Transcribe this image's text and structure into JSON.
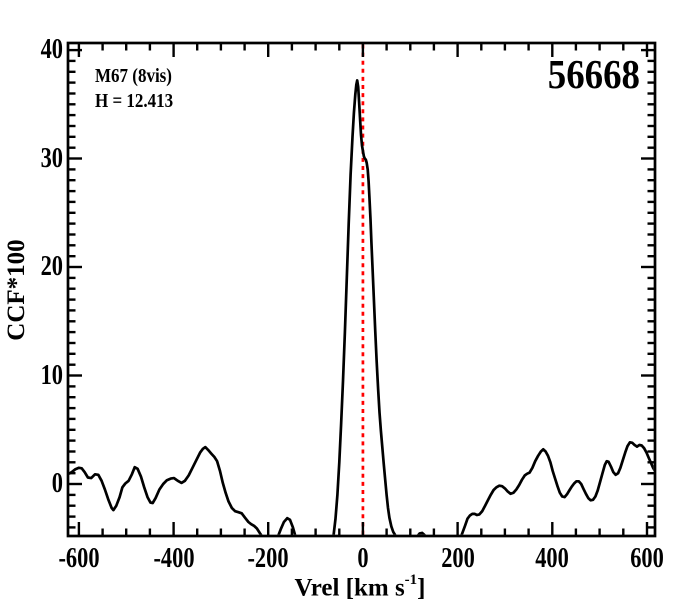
{
  "figure": {
    "cluster_label": "M67 (8vis)",
    "h_mag_label": "H = 12.413",
    "star_id": "56668"
  },
  "colors": {
    "background": "#ffffff",
    "axis": "#000000",
    "curve": "#000000",
    "reference_line": "#ff0000"
  },
  "chart_data": {
    "type": "line",
    "title": "",
    "xlabel_prefix": "Vrel [km s",
    "xlabel_sup": "-1",
    "xlabel_suffix": "]",
    "ylabel": "CCF*100",
    "xlim": [
      -623,
      617
    ],
    "ylim": [
      -4.79,
      40.65
    ],
    "xticks_major": [
      -600,
      -400,
      -200,
      0,
      200,
      400,
      600
    ],
    "xtick_labels": [
      "-600",
      "-400",
      "-200",
      "0",
      "200",
      "400",
      "600"
    ],
    "xtick_minor_step": 50,
    "yticks_major": [
      0,
      10,
      20,
      30,
      40
    ],
    "ytick_labels": [
      "0",
      "10",
      "20",
      "30",
      "40"
    ],
    "ytick_minor_step": 1,
    "grid": false,
    "tick_direction": "in",
    "reference_line": {
      "x": 0,
      "color": "#ff0000",
      "style": "dotted"
    },
    "series": [
      {
        "name": "ccf",
        "color": "#000000",
        "points": [
          [
            -623,
            0.9
          ],
          [
            -615,
            1.1
          ],
          [
            -608,
            1.35
          ],
          [
            -600,
            1.5
          ],
          [
            -594,
            1.45
          ],
          [
            -588,
            1.1
          ],
          [
            -581,
            0.6
          ],
          [
            -574,
            0.55
          ],
          [
            -566,
            0.9
          ],
          [
            -559,
            0.85
          ],
          [
            -552,
            0.3
          ],
          [
            -545,
            -0.5
          ],
          [
            -538,
            -1.4
          ],
          [
            -531,
            -2.2
          ],
          [
            -527,
            -2.4
          ],
          [
            -521,
            -2.0
          ],
          [
            -514,
            -1.2
          ],
          [
            -508,
            -0.3
          ],
          [
            -502,
            0.05
          ],
          [
            -495,
            0.3
          ],
          [
            -488,
            0.9
          ],
          [
            -482,
            1.55
          ],
          [
            -476,
            1.4
          ],
          [
            -469,
            0.7
          ],
          [
            -462,
            -0.3
          ],
          [
            -455,
            -1.2
          ],
          [
            -449,
            -1.7
          ],
          [
            -444,
            -1.75
          ],
          [
            -438,
            -1.3
          ],
          [
            -430,
            -0.5
          ],
          [
            -422,
            0.0
          ],
          [
            -414,
            0.35
          ],
          [
            -406,
            0.5
          ],
          [
            -399,
            0.55
          ],
          [
            -391,
            0.3
          ],
          [
            -383,
            0.1
          ],
          [
            -376,
            0.3
          ],
          [
            -368,
            0.8
          ],
          [
            -360,
            1.5
          ],
          [
            -352,
            2.2
          ],
          [
            -344,
            2.9
          ],
          [
            -338,
            3.25
          ],
          [
            -333,
            3.4
          ],
          [
            -327,
            3.15
          ],
          [
            -320,
            2.8
          ],
          [
            -314,
            2.5
          ],
          [
            -308,
            2.1
          ],
          [
            -302,
            1.2
          ],
          [
            -296,
            0.1
          ],
          [
            -290,
            -0.8
          ],
          [
            -284,
            -1.6
          ],
          [
            -277,
            -2.2
          ],
          [
            -270,
            -2.5
          ],
          [
            -263,
            -2.6
          ],
          [
            -256,
            -2.7
          ],
          [
            -249,
            -3.1
          ],
          [
            -242,
            -3.5
          ],
          [
            -236,
            -3.7
          ],
          [
            -230,
            -3.85
          ],
          [
            -224,
            -4.1
          ],
          [
            -218,
            -4.5
          ],
          [
            -212,
            -4.9
          ],
          [
            -206,
            -5.4
          ],
          [
            -200,
            -5.8
          ],
          [
            -193,
            -5.9
          ],
          [
            -186,
            -5.5
          ],
          [
            -180,
            -4.9
          ],
          [
            -174,
            -4.2
          ],
          [
            -167,
            -3.5
          ],
          [
            -160,
            -3.15
          ],
          [
            -154,
            -3.3
          ],
          [
            -148,
            -4.0
          ],
          [
            -142,
            -4.9
          ],
          [
            -136,
            -5.6
          ],
          [
            -128,
            -6.2
          ],
          [
            -120,
            -6.5
          ],
          [
            -110,
            -6.6
          ],
          [
            -100,
            -6.5
          ],
          [
            -90,
            -6.3
          ],
          [
            -80,
            -6.0
          ],
          [
            -72,
            -5.6
          ],
          [
            -66,
            -5.1
          ],
          [
            -62,
            -4.7
          ],
          [
            -58,
            -3.2
          ],
          [
            -54,
            -1.0
          ],
          [
            -50,
            2.0
          ],
          [
            -46,
            5.5
          ],
          [
            -42,
            9.5
          ],
          [
            -38,
            14.0
          ],
          [
            -34,
            19.0
          ],
          [
            -30,
            24.0
          ],
          [
            -26,
            28.5
          ],
          [
            -22,
            32.0
          ],
          [
            -19,
            34.2
          ],
          [
            -16,
            35.9
          ],
          [
            -14,
            36.8
          ],
          [
            -12,
            37.2
          ],
          [
            -10,
            36.6
          ],
          [
            -8,
            35.2
          ],
          [
            -6,
            33.6
          ],
          [
            -4,
            32.2
          ],
          [
            -2,
            31.2
          ],
          [
            0,
            30.7
          ],
          [
            2,
            30.2
          ],
          [
            4,
            30.0
          ],
          [
            6,
            29.9
          ],
          [
            8,
            29.6
          ],
          [
            10,
            29.0
          ],
          [
            12,
            27.9
          ],
          [
            14,
            26.3
          ],
          [
            16,
            24.4
          ],
          [
            18,
            22.3
          ],
          [
            20,
            20.2
          ],
          [
            23,
            17.2
          ],
          [
            26,
            14.2
          ],
          [
            29,
            11.4
          ],
          [
            32,
            8.8
          ],
          [
            35,
            6.6
          ],
          [
            38,
            4.9
          ],
          [
            41,
            3.4
          ],
          [
            44,
            1.9
          ],
          [
            47,
            0.4
          ],
          [
            50,
            -1.0
          ],
          [
            53,
            -2.2
          ],
          [
            56,
            -3.1
          ],
          [
            60,
            -3.9
          ],
          [
            64,
            -4.4
          ],
          [
            68,
            -4.7
          ],
          [
            72,
            -4.9
          ],
          [
            76,
            -5.2
          ],
          [
            82,
            -5.6
          ],
          [
            90,
            -5.9
          ],
          [
            98,
            -6.0
          ],
          [
            105,
            -5.7
          ],
          [
            110,
            -5.2
          ],
          [
            115,
            -4.8
          ],
          [
            120,
            -4.55
          ],
          [
            125,
            -4.5
          ],
          [
            130,
            -4.7
          ],
          [
            135,
            -5.1
          ],
          [
            140,
            -5.6
          ],
          [
            148,
            -6.0
          ],
          [
            158,
            -6.3
          ],
          [
            170,
            -6.4
          ],
          [
            182,
            -6.3
          ],
          [
            192,
            -6.0
          ],
          [
            200,
            -5.5
          ],
          [
            206,
            -5.0
          ],
          [
            211,
            -4.4
          ],
          [
            216,
            -3.8
          ],
          [
            221,
            -3.2
          ],
          [
            226,
            -2.9
          ],
          [
            231,
            -2.75
          ],
          [
            236,
            -2.75
          ],
          [
            241,
            -2.85
          ],
          [
            246,
            -2.8
          ],
          [
            252,
            -2.5
          ],
          [
            258,
            -2.0
          ],
          [
            264,
            -1.5
          ],
          [
            270,
            -1.0
          ],
          [
            276,
            -0.55
          ],
          [
            282,
            -0.3
          ],
          [
            288,
            -0.15
          ],
          [
            294,
            -0.2
          ],
          [
            300,
            -0.4
          ],
          [
            306,
            -0.7
          ],
          [
            312,
            -0.9
          ],
          [
            318,
            -0.8
          ],
          [
            324,
            -0.5
          ],
          [
            330,
            -0.1
          ],
          [
            336,
            0.4
          ],
          [
            342,
            0.8
          ],
          [
            347,
            0.95
          ],
          [
            352,
            1.05
          ],
          [
            358,
            1.5
          ],
          [
            364,
            2.1
          ],
          [
            370,
            2.6
          ],
          [
            376,
            3.0
          ],
          [
            381,
            3.2
          ],
          [
            386,
            3.0
          ],
          [
            391,
            2.6
          ],
          [
            396,
            2.0
          ],
          [
            401,
            1.2
          ],
          [
            406,
            0.5
          ],
          [
            411,
            -0.2
          ],
          [
            416,
            -0.8
          ],
          [
            421,
            -1.15
          ],
          [
            426,
            -1.2
          ],
          [
            431,
            -0.95
          ],
          [
            436,
            -0.6
          ],
          [
            441,
            -0.25
          ],
          [
            446,
            0.05
          ],
          [
            451,
            0.25
          ],
          [
            456,
            0.25
          ],
          [
            461,
            0.0
          ],
          [
            466,
            -0.45
          ],
          [
            471,
            -0.9
          ],
          [
            476,
            -1.3
          ],
          [
            481,
            -1.5
          ],
          [
            486,
            -1.45
          ],
          [
            491,
            -1.15
          ],
          [
            496,
            -0.6
          ],
          [
            501,
            0.2
          ],
          [
            506,
            1.0
          ],
          [
            511,
            1.75
          ],
          [
            515,
            2.1
          ],
          [
            519,
            2.05
          ],
          [
            524,
            1.6
          ],
          [
            529,
            1.1
          ],
          [
            534,
            0.85
          ],
          [
            539,
            1.0
          ],
          [
            544,
            1.5
          ],
          [
            549,
            2.2
          ],
          [
            554,
            2.9
          ],
          [
            559,
            3.5
          ],
          [
            564,
            3.85
          ],
          [
            569,
            3.8
          ],
          [
            574,
            3.6
          ],
          [
            579,
            3.45
          ],
          [
            584,
            3.6
          ],
          [
            589,
            3.55
          ],
          [
            594,
            3.3
          ],
          [
            599,
            2.9
          ],
          [
            604,
            2.4
          ],
          [
            609,
            1.9
          ],
          [
            613,
            1.5
          ],
          [
            617,
            1.2
          ]
        ]
      }
    ]
  }
}
